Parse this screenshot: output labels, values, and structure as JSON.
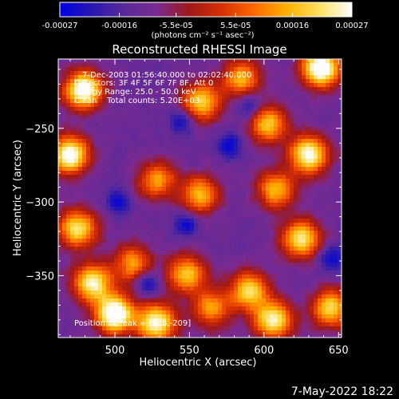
{
  "chart_data": {
    "type": "heatmap",
    "title": "Reconstructed RHESSI Image",
    "xlabel": "Heliocentric X (arcsec)",
    "ylabel": "Heliocentric Y (arcsec)",
    "xlim": [
      462,
      652
    ],
    "ylim": [
      -392,
      -203
    ],
    "x_ticks": [
      500,
      550,
      600,
      650
    ],
    "y_ticks": [
      -250,
      -300,
      -350
    ],
    "x_tick_labels": [
      "500",
      "550",
      "600",
      "650"
    ],
    "y_tick_labels": [
      "−250",
      "−300",
      "−350"
    ],
    "colorbar": {
      "range": [
        -0.00027,
        0.00027
      ],
      "ticks": [
        -0.00027,
        -0.00016,
        -5.5e-05,
        5.5e-05,
        0.00016,
        0.00027
      ],
      "tick_labels": [
        "-0.00027",
        "-0.00016",
        "-5.5e-05",
        "5.5e-05",
        "0.00016",
        "0.00027"
      ],
      "unit_label": "(photons cm⁻² s⁻¹ asec⁻²)",
      "colors": [
        "#0000e0",
        "#2818b0",
        "#5a2a9a",
        "#7a2a90",
        "#a01818",
        "#d83000",
        "#ff6a00",
        "#ffb000",
        "#ffe060",
        "#ffffff"
      ]
    },
    "annotations": [
      "7-Dec-2003 01:56:40.000 to 02:02:40.000",
      "Detectors: 3F 4F 5F 6F 7F 8F, Att 0",
      "Energy Range: 25.0 - 50.0 keV",
      "Clean    Total counts: 5.20E+03",
      "Position of Peak = [638,-209]"
    ],
    "peak_position": [
      638,
      -209
    ],
    "total_counts": 5200,
    "energy_range_kev": [
      25.0,
      50.0
    ],
    "hot_regions": [
      {
        "x": 479,
        "y": -224,
        "level": 0.95
      },
      {
        "x": 470,
        "y": -268,
        "level": 0.9
      },
      {
        "x": 475,
        "y": -318,
        "level": 0.75
      },
      {
        "x": 485,
        "y": -355,
        "level": 0.8
      },
      {
        "x": 500,
        "y": -376,
        "level": 1.0
      },
      {
        "x": 528,
        "y": -382,
        "level": 0.85
      },
      {
        "x": 512,
        "y": -342,
        "level": 0.55
      },
      {
        "x": 528,
        "y": -285,
        "level": 0.55
      },
      {
        "x": 558,
        "y": -232,
        "level": 0.7
      },
      {
        "x": 585,
        "y": -216,
        "level": 0.6
      },
      {
        "x": 603,
        "y": -247,
        "level": 0.65
      },
      {
        "x": 638,
        "y": -209,
        "level": 1.0
      },
      {
        "x": 630,
        "y": -268,
        "level": 0.85
      },
      {
        "x": 608,
        "y": -292,
        "level": 0.6
      },
      {
        "x": 625,
        "y": -325,
        "level": 0.75
      },
      {
        "x": 590,
        "y": -360,
        "level": 0.7
      },
      {
        "x": 606,
        "y": -380,
        "level": 0.8
      },
      {
        "x": 565,
        "y": -372,
        "level": 0.55
      },
      {
        "x": 557,
        "y": -295,
        "level": 0.6
      },
      {
        "x": 645,
        "y": -372,
        "level": 0.7
      },
      {
        "x": 548,
        "y": -349,
        "level": 0.65
      }
    ],
    "cold_regions": [
      {
        "x": 545,
        "y": -245
      },
      {
        "x": 590,
        "y": -235
      },
      {
        "x": 577,
        "y": -262
      },
      {
        "x": 503,
        "y": -300
      },
      {
        "x": 548,
        "y": -315
      },
      {
        "x": 522,
        "y": -355
      },
      {
        "x": 645,
        "y": -338
      }
    ]
  },
  "footer": {
    "timestamp": "7-May-2022 18:22"
  }
}
